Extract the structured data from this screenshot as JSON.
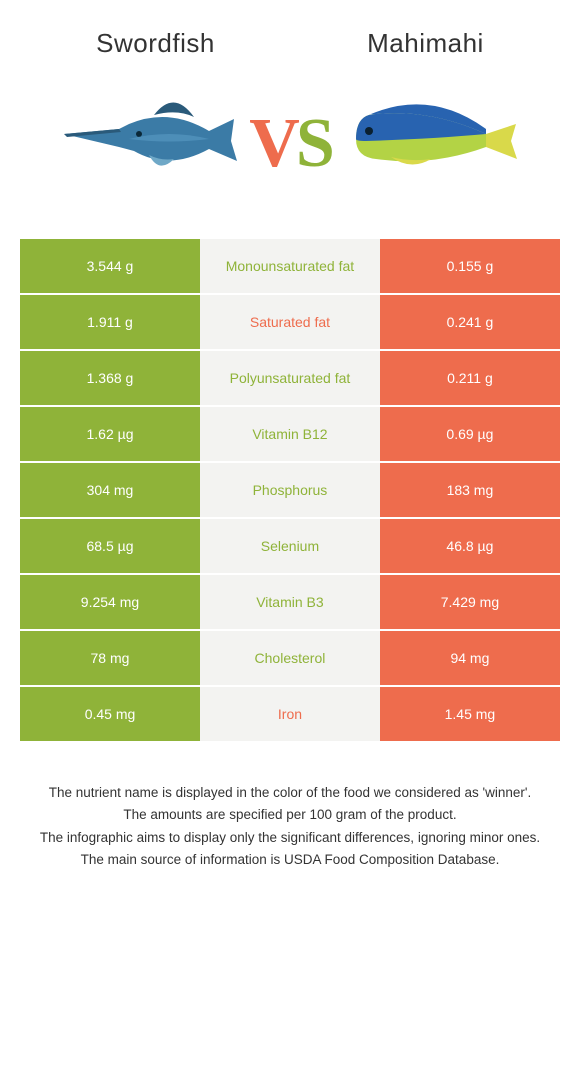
{
  "header": {
    "left_title": "Swordfish",
    "right_title": "Mahimahi"
  },
  "vs": {
    "v": "V",
    "s": "S"
  },
  "colors": {
    "green": "#8fb339",
    "orange": "#ee6c4d",
    "mid_bg": "#f3f3f1",
    "white": "#ffffff"
  },
  "rows": [
    {
      "left": "3.544 g",
      "label": "Monounsaturated fat",
      "right": "0.155 g",
      "winner": "left"
    },
    {
      "left": "1.911 g",
      "label": "Saturated fat",
      "right": "0.241 g",
      "winner": "right"
    },
    {
      "left": "1.368 g",
      "label": "Polyunsaturated fat",
      "right": "0.211 g",
      "winner": "left"
    },
    {
      "left": "1.62 µg",
      "label": "Vitamin B12",
      "right": "0.69 µg",
      "winner": "left"
    },
    {
      "left": "304 mg",
      "label": "Phosphorus",
      "right": "183 mg",
      "winner": "left"
    },
    {
      "left": "68.5 µg",
      "label": "Selenium",
      "right": "46.8 µg",
      "winner": "left"
    },
    {
      "left": "9.254 mg",
      "label": "Vitamin B3",
      "right": "7.429 mg",
      "winner": "left"
    },
    {
      "left": "78 mg",
      "label": "Cholesterol",
      "right": "94 mg",
      "winner": "left"
    },
    {
      "left": "0.45 mg",
      "label": "Iron",
      "right": "1.45 mg",
      "winner": "right"
    }
  ],
  "notes": {
    "line1": "The nutrient name is displayed in the color of the food we considered as 'winner'.",
    "line2": "The amounts are specified per 100 gram of the product.",
    "line3": "The infographic aims to display only the significant differences, ignoring minor ones.",
    "line4": "The main source of information is USDA Food Composition Database."
  }
}
